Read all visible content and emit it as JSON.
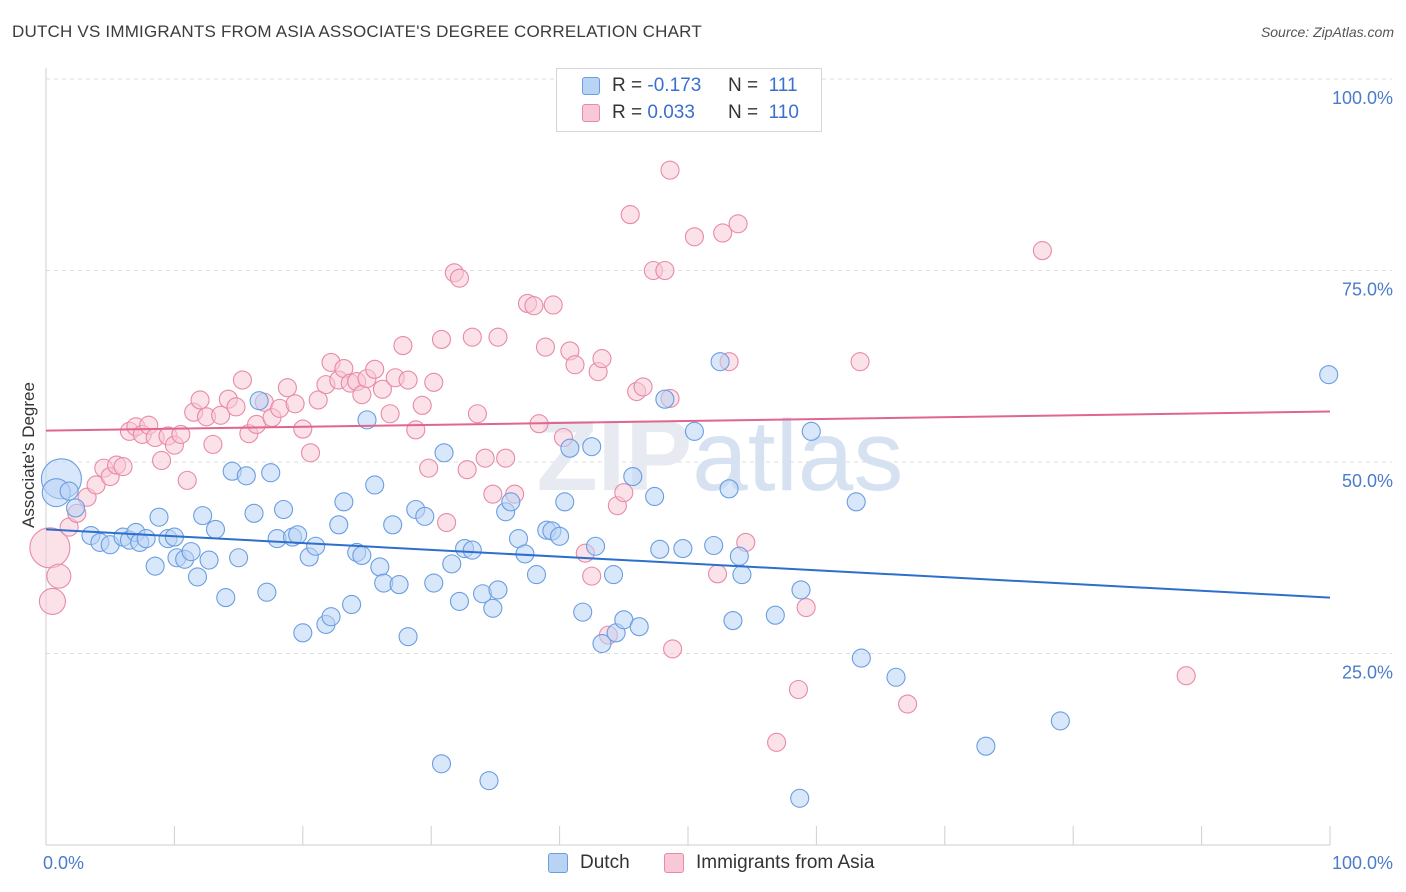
{
  "title": "DUTCH VS IMMIGRANTS FROM ASIA ASSOCIATE'S DEGREE CORRELATION CHART",
  "source": "Source: ZipAtlas.com",
  "legend": {
    "rows": [
      {
        "r_label": "R =",
        "r_value": "-0.173",
        "n_label": "N =",
        "n_value": "111"
      },
      {
        "r_label": "R =",
        "r_value": "0.033",
        "n_label": "N =",
        "n_value": "110"
      }
    ]
  },
  "bottom_legend": {
    "dutch": "Dutch",
    "asia": "Immigrants from Asia"
  },
  "colors": {
    "dutch_fill": "#b9d3f5",
    "dutch_stroke": "#6a9ee0",
    "dutch_line": "#2d6fcc",
    "asia_fill": "#f8c8d6",
    "asia_stroke": "#e88aa8",
    "asia_line": "#e0668f",
    "tick_text": "#4a7cc9"
  },
  "chart_data": {
    "type": "scatter",
    "title": "DUTCH VS IMMIGRANTS FROM ASIA ASSOCIATE'S DEGREE CORRELATION CHART",
    "xlabel": "",
    "ylabel": "Associate's Degree",
    "xlim": [
      0,
      100
    ],
    "ylim": [
      0,
      100
    ],
    "x_tick_labels": [
      "0.0%",
      "100.0%"
    ],
    "y_ticks": [
      25,
      50,
      75,
      100
    ],
    "y_tick_labels": [
      "25.0%",
      "50.0%",
      "75.0%",
      "100.0%"
    ],
    "grid": "horizontal dashed",
    "watermark": "ZIPatlas",
    "series": [
      {
        "name": "Dutch",
        "trend": {
          "x": [
            0,
            100
          ],
          "y": [
            41.2,
            32.3
          ]
        },
        "points": [
          [
            1.2,
            47.8,
            20
          ],
          [
            0.8,
            46,
            14
          ],
          [
            1.8,
            46.2,
            9
          ],
          [
            2.3,
            44,
            9
          ],
          [
            3.5,
            40.4,
            9
          ],
          [
            4.2,
            39.5,
            9
          ],
          [
            5,
            39.2,
            9
          ],
          [
            6,
            40.2,
            9
          ],
          [
            6.5,
            39.8,
            9
          ],
          [
            7,
            40.8,
            9
          ],
          [
            7.3,
            39.5,
            9
          ],
          [
            7.8,
            40,
            9
          ],
          [
            8.5,
            36.4,
            9
          ],
          [
            8.8,
            42.8,
            9
          ],
          [
            9.5,
            40,
            9
          ],
          [
            10,
            40.2,
            9
          ],
          [
            10.2,
            37.5,
            9
          ],
          [
            10.8,
            37.3,
            9
          ],
          [
            11.3,
            38.3,
            9
          ],
          [
            11.8,
            35,
            9
          ],
          [
            12.2,
            43,
            9
          ],
          [
            12.7,
            37.2,
            9
          ],
          [
            13.2,
            41.2,
            9
          ],
          [
            14,
            32.3,
            9
          ],
          [
            14.5,
            48.8,
            9
          ],
          [
            15,
            37.5,
            9
          ],
          [
            15.6,
            48.2,
            9
          ],
          [
            16.2,
            43.3,
            9
          ],
          [
            16.6,
            58,
            9
          ],
          [
            17.2,
            33,
            9
          ],
          [
            17.5,
            48.6,
            9
          ],
          [
            18,
            40,
            9
          ],
          [
            18.5,
            43.8,
            9
          ],
          [
            19.2,
            40.2,
            9
          ],
          [
            19.6,
            40.5,
            9
          ],
          [
            20,
            27.7,
            9
          ],
          [
            20.5,
            37.6,
            9
          ],
          [
            21,
            39,
            9
          ],
          [
            21.8,
            28.8,
            9
          ],
          [
            22.2,
            29.8,
            9
          ],
          [
            22.8,
            41.8,
            9
          ],
          [
            23.2,
            44.8,
            9
          ],
          [
            23.8,
            31.4,
            9
          ],
          [
            24.2,
            38.2,
            9
          ],
          [
            24.6,
            37.8,
            9
          ],
          [
            25,
            55.5,
            9
          ],
          [
            25.6,
            47,
            9
          ],
          [
            26,
            36.3,
            9
          ],
          [
            26.3,
            34.2,
            9
          ],
          [
            27,
            41.8,
            9
          ],
          [
            27.5,
            34,
            9
          ],
          [
            28.2,
            27.2,
            9
          ],
          [
            28.8,
            43.8,
            9
          ],
          [
            29.5,
            42.9,
            9
          ],
          [
            30.2,
            34.2,
            9
          ],
          [
            30.8,
            10.6,
            9
          ],
          [
            31,
            51.2,
            9
          ],
          [
            31.6,
            36.7,
            9
          ],
          [
            32.2,
            31.8,
            9
          ],
          [
            32.6,
            38.7,
            9
          ],
          [
            33.2,
            38.5,
            9
          ],
          [
            34,
            32.8,
            9
          ],
          [
            34.5,
            8.4,
            9
          ],
          [
            34.8,
            30.9,
            9
          ],
          [
            35.2,
            33.3,
            9
          ],
          [
            35.8,
            43.5,
            9
          ],
          [
            36.2,
            44.8,
            9
          ],
          [
            36.8,
            40,
            9
          ],
          [
            37.3,
            38,
            9
          ],
          [
            38.2,
            35.3,
            9
          ],
          [
            39,
            41.1,
            9
          ],
          [
            39.4,
            41,
            9
          ],
          [
            40,
            40.3,
            9
          ],
          [
            40.4,
            44.8,
            9
          ],
          [
            40.8,
            51.8,
            9
          ],
          [
            41.8,
            30.4,
            9
          ],
          [
            42.5,
            52,
            9
          ],
          [
            42.8,
            39,
            9
          ],
          [
            43.3,
            26.3,
            9
          ],
          [
            44.2,
            35.3,
            9
          ],
          [
            44.4,
            27.7,
            9
          ],
          [
            45,
            29.4,
            9
          ],
          [
            45.7,
            48.1,
            9
          ],
          [
            46.2,
            28.5,
            9
          ],
          [
            47.4,
            45.5,
            9
          ],
          [
            47.8,
            38.6,
            9
          ],
          [
            48.2,
            58.2,
            9
          ],
          [
            49.6,
            38.7,
            9
          ],
          [
            50.5,
            54,
            9
          ],
          [
            52,
            39.1,
            9
          ],
          [
            52.5,
            63.1,
            9
          ],
          [
            53.2,
            46.5,
            9
          ],
          [
            53.5,
            29.3,
            9
          ],
          [
            54,
            37.7,
            9
          ],
          [
            54.2,
            35.3,
            9
          ],
          [
            56.8,
            30,
            9
          ],
          [
            58.7,
            6.1,
            9
          ],
          [
            58.8,
            33.3,
            9
          ],
          [
            59.6,
            54,
            9
          ],
          [
            63.1,
            44.8,
            9
          ],
          [
            63.5,
            24.4,
            9
          ],
          [
            66.2,
            21.9,
            9
          ],
          [
            73.2,
            12.9,
            9
          ],
          [
            79,
            16.2,
            9
          ],
          [
            99.9,
            61.4,
            9
          ]
        ]
      },
      {
        "name": "Immigrants from Asia",
        "trend": {
          "x": [
            0,
            100
          ],
          "y": [
            54.1,
            56.6
          ]
        },
        "points": [
          [
            0.3,
            38.8,
            20
          ],
          [
            0.5,
            31.8,
            13
          ],
          [
            1,
            35.1,
            12
          ],
          [
            1.8,
            41.5,
            9
          ],
          [
            2.4,
            43.3,
            9
          ],
          [
            3.2,
            45.4,
            9
          ],
          [
            3.9,
            47,
            9
          ],
          [
            4.5,
            49.2,
            9
          ],
          [
            5,
            48.1,
            9
          ],
          [
            5.5,
            49.6,
            9
          ],
          [
            6,
            49.4,
            9
          ],
          [
            6.5,
            54,
            9
          ],
          [
            7,
            54.6,
            9
          ],
          [
            7.5,
            53.6,
            9
          ],
          [
            8,
            54.8,
            9
          ],
          [
            8.5,
            53.2,
            9
          ],
          [
            9,
            50.2,
            9
          ],
          [
            9.5,
            53.4,
            9
          ],
          [
            10,
            52.2,
            9
          ],
          [
            10.5,
            53.6,
            9
          ],
          [
            11,
            47.6,
            9
          ],
          [
            11.5,
            56.5,
            9
          ],
          [
            12,
            58.1,
            9
          ],
          [
            12.5,
            55.9,
            9
          ],
          [
            13,
            52.3,
            9
          ],
          [
            13.6,
            56.1,
            9
          ],
          [
            14.2,
            58.2,
            9
          ],
          [
            14.8,
            57.2,
            9
          ],
          [
            15.3,
            60.7,
            9
          ],
          [
            15.8,
            53.7,
            9
          ],
          [
            16.4,
            54.9,
            9
          ],
          [
            17,
            57.8,
            9
          ],
          [
            17.6,
            55.8,
            9
          ],
          [
            18.2,
            57,
            9
          ],
          [
            18.8,
            59.7,
            9
          ],
          [
            19.4,
            57.6,
            9
          ],
          [
            20,
            54.3,
            9
          ],
          [
            20.6,
            51.2,
            9
          ],
          [
            21.2,
            58.1,
            9
          ],
          [
            21.8,
            60.1,
            9
          ],
          [
            22.2,
            63,
            9
          ],
          [
            22.8,
            60.7,
            9
          ],
          [
            23.2,
            62.2,
            9
          ],
          [
            23.7,
            60.3,
            9
          ],
          [
            24.2,
            60.5,
            9
          ],
          [
            24.6,
            58.8,
            9
          ],
          [
            25,
            60.9,
            9
          ],
          [
            25.6,
            62.1,
            9
          ],
          [
            26.2,
            59.5,
            9
          ],
          [
            26.8,
            56.3,
            9
          ],
          [
            27.2,
            61,
            9
          ],
          [
            27.8,
            65.2,
            9
          ],
          [
            28.2,
            60.7,
            9
          ],
          [
            28.8,
            54.2,
            9
          ],
          [
            29.3,
            57.4,
            9
          ],
          [
            29.8,
            49.2,
            9
          ],
          [
            30.2,
            60.4,
            9
          ],
          [
            30.8,
            66,
            9
          ],
          [
            31.2,
            42.1,
            9
          ],
          [
            31.8,
            74.7,
            9
          ],
          [
            32.2,
            74,
            9
          ],
          [
            32.8,
            49,
            9
          ],
          [
            33.2,
            66.3,
            9
          ],
          [
            33.6,
            56.3,
            9
          ],
          [
            34.2,
            50.5,
            9
          ],
          [
            34.8,
            45.8,
            9
          ],
          [
            35.2,
            66.3,
            9
          ],
          [
            35.8,
            50.5,
            9
          ],
          [
            36.5,
            45.8,
            9
          ],
          [
            37.5,
            70.7,
            9
          ],
          [
            38,
            70.4,
            9
          ],
          [
            38.4,
            55,
            9
          ],
          [
            38.9,
            65,
            9
          ],
          [
            39.5,
            70.5,
            9
          ],
          [
            40.3,
            53.2,
            9
          ],
          [
            40.8,
            64.5,
            9
          ],
          [
            41.2,
            62.7,
            9
          ],
          [
            42,
            38.1,
            9
          ],
          [
            42.5,
            35.1,
            9
          ],
          [
            43,
            61.8,
            9
          ],
          [
            43.3,
            63.5,
            9
          ],
          [
            43.8,
            27.4,
            9
          ],
          [
            44.5,
            44.3,
            9
          ],
          [
            45,
            46,
            9
          ],
          [
            45.5,
            82.3,
            9
          ],
          [
            46,
            59.2,
            9
          ],
          [
            46.5,
            59.8,
            9
          ],
          [
            47.3,
            75,
            9
          ],
          [
            48.2,
            75,
            9
          ],
          [
            48.6,
            58.3,
            9
          ],
          [
            48.8,
            25.6,
            9
          ],
          [
            48.6,
            88.1,
            9
          ],
          [
            50.5,
            79.4,
            9
          ],
          [
            52.3,
            35.4,
            9
          ],
          [
            52.7,
            79.9,
            9
          ],
          [
            53.2,
            63.1,
            9
          ],
          [
            53.9,
            81.1,
            9
          ],
          [
            54.5,
            39.5,
            9
          ],
          [
            56.9,
            13.4,
            9
          ],
          [
            58.6,
            20.3,
            9
          ],
          [
            59.2,
            31,
            9
          ],
          [
            63.4,
            63.1,
            9
          ],
          [
            67.1,
            18.4,
            9
          ],
          [
            77.6,
            77.6,
            9
          ],
          [
            88.8,
            22.1,
            9
          ]
        ]
      }
    ]
  }
}
